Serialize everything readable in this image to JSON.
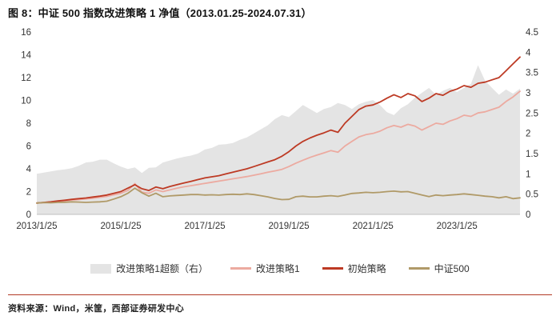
{
  "figure": {
    "title": "图 8：中证 500 指数改进策略 1 净值（2013.01.25-2024.07.31）",
    "source": "资料来源：Wind，米筐，西部证券研发中心"
  },
  "colors": {
    "accent_red": "#b23a26",
    "initial_strategy": "#bd3a24",
    "improved_strategy": "#ecaaa0",
    "csi500": "#b09a68",
    "excess_area": "#e4e4e4",
    "axis_text": "#333333",
    "axis_line": "#bfbfbf"
  },
  "chart_data": {
    "type": "line+area",
    "title": "中证 500 指数改进策略 1 净值（2013.01.25-2024.07.31）",
    "xlabel": "",
    "ylabel_left": "",
    "ylabel_right": "",
    "grid": false,
    "legend_position": "bottom",
    "left_axis": {
      "min": 0,
      "max": 16,
      "ticks": [
        0,
        2,
        4,
        6,
        8,
        10,
        12,
        14,
        16
      ]
    },
    "right_axis": {
      "min": 0,
      "max": 4.5,
      "ticks": [
        0,
        0.5,
        1,
        1.5,
        2,
        2.5,
        3,
        3.5,
        4,
        4.5
      ]
    },
    "x_tick_indices": [
      0,
      12,
      24,
      36,
      48,
      60
    ],
    "x_tick_labels": [
      "2013/1/25",
      "2015/1/25",
      "2017/1/25",
      "2019/1/25",
      "2021/1/25",
      "2023/1/25"
    ],
    "x": [
      "2013/01",
      "2013/03",
      "2013/05",
      "2013/07",
      "2013/09",
      "2013/11",
      "2014/01",
      "2014/03",
      "2014/05",
      "2014/07",
      "2014/09",
      "2014/11",
      "2015/01",
      "2015/03",
      "2015/05",
      "2015/07",
      "2015/09",
      "2015/11",
      "2016/01",
      "2016/03",
      "2016/05",
      "2016/07",
      "2016/09",
      "2016/11",
      "2017/01",
      "2017/03",
      "2017/05",
      "2017/07",
      "2017/09",
      "2017/11",
      "2018/01",
      "2018/03",
      "2018/05",
      "2018/07",
      "2018/09",
      "2018/11",
      "2019/01",
      "2019/03",
      "2019/05",
      "2019/07",
      "2019/09",
      "2019/11",
      "2020/01",
      "2020/03",
      "2020/05",
      "2020/07",
      "2020/09",
      "2020/11",
      "2021/01",
      "2021/03",
      "2021/05",
      "2021/07",
      "2021/09",
      "2021/11",
      "2022/01",
      "2022/03",
      "2022/05",
      "2022/07",
      "2022/09",
      "2022/11",
      "2023/01",
      "2023/03",
      "2023/05",
      "2023/07",
      "2023/09",
      "2023/11",
      "2024/01",
      "2024/03",
      "2024/05",
      "2024/07"
    ],
    "series": [
      {
        "key": "excess-improved1",
        "name": "改进策略1超额（右）",
        "type": "area",
        "axis": "right",
        "color": "#e4e4e4",
        "values": [
          1.0,
          1.03,
          1.06,
          1.09,
          1.11,
          1.14,
          1.2,
          1.28,
          1.3,
          1.35,
          1.35,
          1.26,
          1.18,
          1.12,
          1.16,
          1.02,
          1.15,
          1.16,
          1.28,
          1.33,
          1.38,
          1.42,
          1.45,
          1.5,
          1.6,
          1.64,
          1.72,
          1.73,
          1.76,
          1.84,
          1.9,
          2.0,
          2.1,
          2.2,
          2.35,
          2.45,
          2.4,
          2.55,
          2.7,
          2.6,
          2.5,
          2.6,
          2.65,
          2.75,
          2.7,
          2.6,
          2.72,
          2.78,
          2.82,
          2.7,
          2.52,
          2.45,
          2.62,
          2.72,
          2.88,
          3.0,
          3.12,
          2.95,
          3.05,
          3.12,
          3.02,
          3.12,
          3.22,
          3.68,
          3.3,
          3.12,
          2.95,
          3.08,
          2.98,
          3.1
        ]
      },
      {
        "key": "improved1",
        "name": "改进策略1",
        "type": "line",
        "axis": "left",
        "color": "#ecaaa0",
        "values": [
          1.0,
          1.04,
          1.08,
          1.14,
          1.19,
          1.26,
          1.3,
          1.36,
          1.42,
          1.5,
          1.58,
          1.72,
          1.85,
          2.1,
          2.7,
          1.95,
          1.85,
          2.15,
          2.0,
          2.15,
          2.3,
          2.42,
          2.52,
          2.62,
          2.72,
          2.82,
          2.92,
          3.02,
          3.12,
          3.22,
          3.32,
          3.44,
          3.56,
          3.7,
          3.82,
          3.95,
          4.2,
          4.5,
          4.75,
          5.0,
          5.2,
          5.4,
          5.6,
          5.45,
          6.0,
          6.4,
          6.8,
          7.0,
          7.1,
          7.3,
          7.6,
          7.8,
          7.65,
          7.9,
          7.75,
          7.4,
          7.7,
          8.0,
          7.9,
          8.2,
          8.4,
          8.7,
          8.6,
          8.9,
          9.0,
          9.2,
          9.4,
          9.9,
          10.3,
          10.8
        ]
      },
      {
        "key": "initial-strategy",
        "name": "初始策略",
        "type": "line",
        "axis": "left",
        "color": "#bd3a24",
        "values": [
          1.0,
          1.05,
          1.1,
          1.18,
          1.24,
          1.32,
          1.38,
          1.44,
          1.52,
          1.6,
          1.7,
          1.85,
          2.0,
          2.3,
          2.6,
          2.25,
          2.1,
          2.4,
          2.25,
          2.45,
          2.6,
          2.75,
          2.9,
          3.05,
          3.2,
          3.3,
          3.4,
          3.55,
          3.7,
          3.85,
          4.0,
          4.2,
          4.4,
          4.6,
          4.8,
          5.1,
          5.5,
          6.0,
          6.4,
          6.7,
          6.95,
          7.15,
          7.4,
          7.2,
          8.0,
          8.6,
          9.2,
          9.5,
          9.6,
          9.85,
          10.2,
          10.5,
          10.25,
          10.6,
          10.4,
          9.9,
          10.2,
          10.6,
          10.45,
          10.8,
          11.0,
          11.3,
          11.15,
          11.5,
          11.6,
          11.8,
          12.0,
          12.6,
          13.2,
          13.8
        ]
      },
      {
        "key": "csi500",
        "name": "中证500",
        "type": "line",
        "axis": "left",
        "color": "#b09a68",
        "values": [
          1.0,
          1.04,
          1.02,
          1.05,
          1.07,
          1.1,
          1.08,
          1.05,
          1.08,
          1.1,
          1.16,
          1.35,
          1.55,
          1.85,
          2.3,
          1.9,
          1.6,
          1.85,
          1.55,
          1.62,
          1.66,
          1.7,
          1.74,
          1.74,
          1.7,
          1.72,
          1.69,
          1.74,
          1.77,
          1.74,
          1.8,
          1.74,
          1.64,
          1.54,
          1.4,
          1.3,
          1.32,
          1.55,
          1.6,
          1.54,
          1.54,
          1.6,
          1.64,
          1.58,
          1.7,
          1.84,
          1.88,
          1.94,
          1.9,
          1.94,
          2.0,
          2.04,
          1.98,
          2.0,
          1.85,
          1.7,
          1.56,
          1.7,
          1.64,
          1.7,
          1.74,
          1.8,
          1.74,
          1.68,
          1.6,
          1.55,
          1.45,
          1.55,
          1.38,
          1.45
        ]
      }
    ],
    "legend": [
      {
        "label": "改进策略1超额（右）",
        "swatch": "area",
        "color": "#e4e4e4"
      },
      {
        "label": "改进策略1",
        "swatch": "line",
        "color": "#ecaaa0"
      },
      {
        "label": "初始策略",
        "swatch": "line",
        "color": "#bd3a24"
      },
      {
        "label": "中证500",
        "swatch": "line",
        "color": "#b09a68"
      }
    ]
  }
}
